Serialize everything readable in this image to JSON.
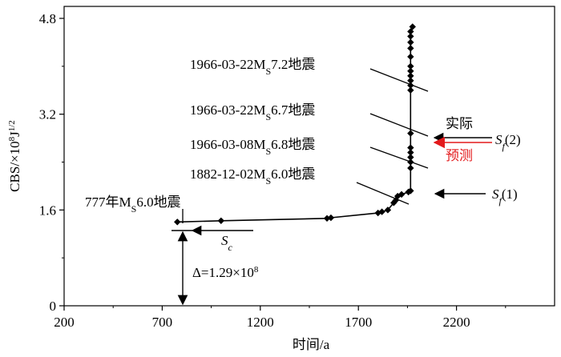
{
  "chart_data": {
    "type": "line",
    "xlabel": "时间/a",
    "ylabel": "CBS/×10⁸J¹ᐟ²",
    "xlim": [
      200,
      2700
    ],
    "ylim": [
      0,
      5.0
    ],
    "x_ticks": [
      200,
      700,
      1200,
      1700,
      2200
    ],
    "y_ticks": [
      0,
      1.6,
      3.2,
      4.8
    ],
    "y_tick_labels": [
      "0",
      "1.6",
      "3.2",
      "4.8"
    ],
    "series": [
      {
        "points": [
          [
            777,
            1.4
          ],
          [
            1000,
            1.42
          ],
          [
            1540,
            1.46
          ],
          [
            1560,
            1.47
          ],
          [
            1800,
            1.55
          ],
          [
            1820,
            1.57
          ],
          [
            1850,
            1.6
          ],
          [
            1880,
            1.72
          ],
          [
            1890,
            1.76
          ],
          [
            1900,
            1.83
          ],
          [
            1920,
            1.86
          ],
          [
            1955,
            1.9
          ],
          [
            1966,
            1.92
          ],
          [
            1966,
            2.3
          ],
          [
            1966,
            2.4
          ],
          [
            1966,
            2.48
          ],
          [
            1966,
            2.56
          ],
          [
            1966,
            2.64
          ],
          [
            1966,
            2.88
          ],
          [
            1966,
            3.6
          ],
          [
            1966,
            3.68
          ],
          [
            1966,
            3.76
          ],
          [
            1966,
            3.84
          ],
          [
            1966,
            3.92
          ],
          [
            1966,
            4.0
          ],
          [
            1966,
            4.16
          ],
          [
            1966,
            4.3
          ],
          [
            1966,
            4.4
          ],
          [
            1966,
            4.5
          ],
          [
            1966,
            4.58
          ],
          [
            1976,
            4.66
          ]
        ]
      }
    ],
    "annotations": {
      "eq_777": "777年M",
      "eq_777_sub": "S",
      "eq_777_tail": "6.0地震",
      "eq_1882": "1882-12-02M",
      "eq_1882_sub": "S",
      "eq_1882_tail": "6.0地震",
      "eq_0308": "1966-03-08M",
      "eq_0308_sub": "S",
      "eq_0308_tail": "6.8地震",
      "eq_0322a": "1966-03-22M",
      "eq_0322a_sub": "S",
      "eq_0322a_tail": "6.7地震",
      "eq_0322b": "1966-03-22M",
      "eq_0322b_sub": "S",
      "eq_0322b_tail": "7.2地震",
      "actual": "实际",
      "predicted": "预测",
      "sf2": "S",
      "sf2_sub": "f",
      "sf2_tail": "(2)",
      "sf1": "S",
      "sf1_sub": "f",
      "sf1_tail": "(1)",
      "sc": "S",
      "sc_sub": "c",
      "delta": "Δ=1.29×10",
      "delta_sup": "8"
    },
    "reference_values": {
      "sc_level": 1.29,
      "sf1_level": 1.92,
      "sf2_actual_level": 2.88,
      "sf2_predicted_level": 2.78
    },
    "colors": {
      "line": "#000000",
      "predicted": "#e31a1c"
    }
  }
}
